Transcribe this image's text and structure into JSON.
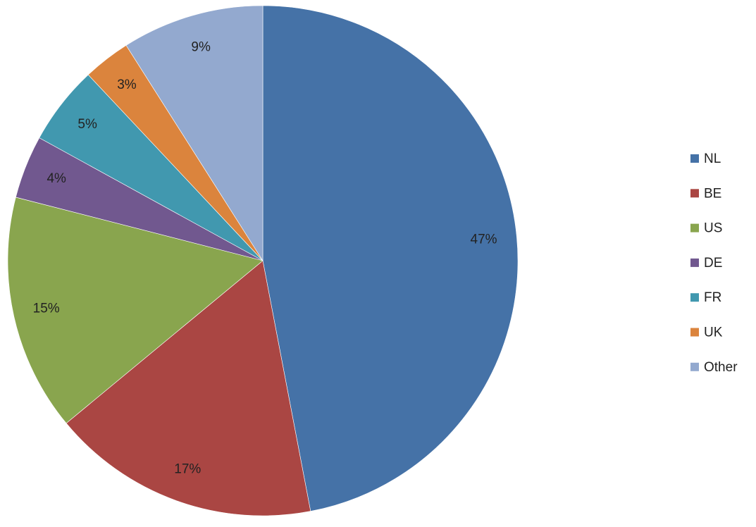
{
  "chart_data": {
    "type": "pie",
    "categories": [
      "NL",
      "BE",
      "US",
      "DE",
      "FR",
      "UK",
      "Other"
    ],
    "values": [
      47,
      17,
      15,
      4,
      5,
      3,
      9
    ],
    "value_labels": [
      "47%",
      "17%",
      "15%",
      "4%",
      "5%",
      "3%",
      "9%"
    ],
    "colors": [
      "#4572a7",
      "#aa4643",
      "#89a54e",
      "#71588f",
      "#4198af",
      "#db843d",
      "#93a9cf"
    ],
    "legend": "right"
  }
}
